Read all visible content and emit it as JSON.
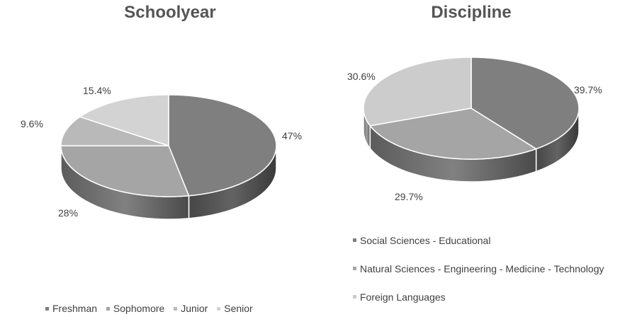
{
  "chart_data": [
    {
      "type": "pie",
      "title": "Schoolyear",
      "categories": [
        "Freshman",
        "Sophomore",
        "Junior",
        "Senior"
      ],
      "values": [
        47,
        28,
        9.6,
        15.4
      ],
      "data_labels": [
        "47%",
        "28%",
        "9.6%",
        "15.4%"
      ],
      "colors": [
        "#7f7f7f",
        "#a5a5a5",
        "#b9b9b9",
        "#d3d3d3"
      ],
      "legend_position": "bottom"
    },
    {
      "type": "pie",
      "title": "Discipline",
      "categories": [
        "Social Sciences - Educational",
        "Natural Sciences - Engineering - Medicine - Technology",
        "Foreign Languages"
      ],
      "values": [
        39.7,
        29.7,
        30.6
      ],
      "data_labels": [
        "39.7%",
        "29.7%",
        "30.6%"
      ],
      "colors": [
        "#7f7f7f",
        "#a5a5a5",
        "#cccccc"
      ],
      "legend_position": "bottom"
    }
  ]
}
